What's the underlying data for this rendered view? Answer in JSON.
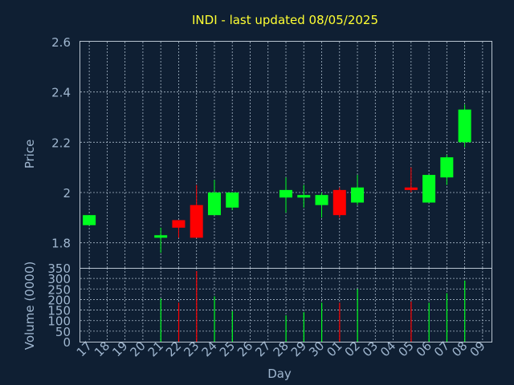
{
  "chart_data": [
    {
      "type": "candlestick",
      "title": "INDI - last updated 08/05/2025",
      "ylabel": "Price",
      "ylim": [
        1.7,
        2.6
      ],
      "yticks": [
        "1.8",
        "2",
        "2.2",
        "2.4",
        "2.6"
      ],
      "categories": [
        "17",
        "18",
        "19",
        "20",
        "21",
        "22",
        "23",
        "24",
        "25",
        "26",
        "27",
        "28",
        "29",
        "30",
        "01",
        "02",
        "03",
        "04",
        "05",
        "06",
        "07",
        "08",
        "09"
      ],
      "grid": true,
      "colors": {
        "up": "#00ff1f",
        "down": "#ff0000"
      },
      "candles": [
        {
          "day": "17",
          "open": 1.87,
          "high": 1.91,
          "low": 1.87,
          "close": 1.91
        },
        {
          "day": "21",
          "open": 1.82,
          "high": 1.86,
          "low": 1.76,
          "close": 1.83
        },
        {
          "day": "22",
          "open": 1.89,
          "high": 1.89,
          "low": 1.82,
          "close": 1.86
        },
        {
          "day": "23",
          "open": 1.95,
          "high": 2.03,
          "low": 1.82,
          "close": 1.82
        },
        {
          "day": "24",
          "open": 1.91,
          "high": 2.05,
          "low": 1.91,
          "close": 2.0
        },
        {
          "day": "25",
          "open": 1.94,
          "high": 2.0,
          "low": 1.93,
          "close": 2.0
        },
        {
          "day": "28",
          "open": 1.98,
          "high": 2.06,
          "low": 1.92,
          "close": 2.01
        },
        {
          "day": "29",
          "open": 1.98,
          "high": 2.03,
          "low": 1.94,
          "close": 1.99
        },
        {
          "day": "30",
          "open": 1.95,
          "high": 2.0,
          "low": 1.9,
          "close": 1.99
        },
        {
          "day": "01",
          "open": 2.01,
          "high": 2.02,
          "low": 1.9,
          "close": 1.91
        },
        {
          "day": "02",
          "open": 1.96,
          "high": 2.07,
          "low": 1.95,
          "close": 2.02
        },
        {
          "day": "05",
          "open": 2.02,
          "high": 2.1,
          "low": 2.0,
          "close": 2.01
        },
        {
          "day": "06",
          "open": 1.96,
          "high": 2.07,
          "low": 1.96,
          "close": 2.07
        },
        {
          "day": "07",
          "open": 2.06,
          "high": 2.15,
          "low": 2.03,
          "close": 2.14
        },
        {
          "day": "08",
          "open": 2.2,
          "high": 2.35,
          "low": 2.18,
          "close": 2.33
        }
      ]
    },
    {
      "type": "bar",
      "ylabel": "Volume (0000)",
      "xlabel": "Day",
      "ylim": [
        0,
        350
      ],
      "yticks": [
        "0",
        "50",
        "100",
        "150",
        "200",
        "250",
        "300",
        "350"
      ],
      "series": [
        {
          "day": "17",
          "value": 0,
          "dir": "up"
        },
        {
          "day": "21",
          "value": 205,
          "dir": "up"
        },
        {
          "day": "22",
          "value": 185,
          "dir": "down"
        },
        {
          "day": "23",
          "value": 335,
          "dir": "down"
        },
        {
          "day": "24",
          "value": 215,
          "dir": "up"
        },
        {
          "day": "25",
          "value": 145,
          "dir": "up"
        },
        {
          "day": "28",
          "value": 125,
          "dir": "up"
        },
        {
          "day": "29",
          "value": 140,
          "dir": "up"
        },
        {
          "day": "30",
          "value": 185,
          "dir": "up"
        },
        {
          "day": "01",
          "value": 185,
          "dir": "down"
        },
        {
          "day": "02",
          "value": 250,
          "dir": "up"
        },
        {
          "day": "05",
          "value": 190,
          "dir": "down"
        },
        {
          "day": "06",
          "value": 185,
          "dir": "up"
        },
        {
          "day": "07",
          "value": 230,
          "dir": "up"
        },
        {
          "day": "08",
          "value": 290,
          "dir": "up"
        }
      ]
    }
  ]
}
